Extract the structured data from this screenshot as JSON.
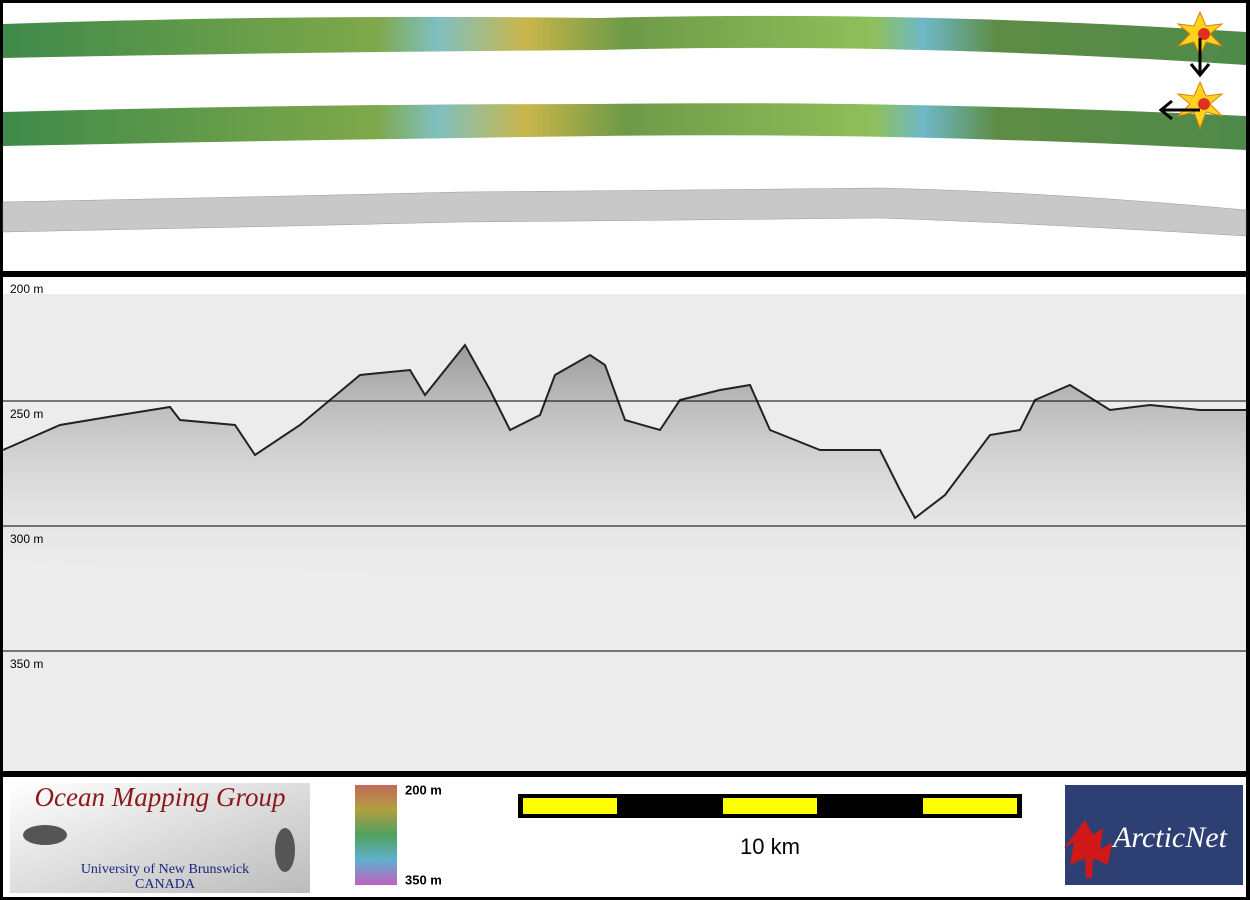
{
  "profile": {
    "depth_labels": [
      "200 m",
      "250 m",
      "300 m",
      "350 m"
    ]
  },
  "footer": {
    "logo_left": {
      "title": "Ocean Mapping Group",
      "line1": "University of New Brunswick",
      "line2": "CANADA"
    },
    "color_scale": {
      "top": "200 m",
      "bottom": "350 m"
    },
    "scale_bar": {
      "label": "10 km"
    },
    "logo_right": {
      "text": "ArcticNet"
    }
  }
}
